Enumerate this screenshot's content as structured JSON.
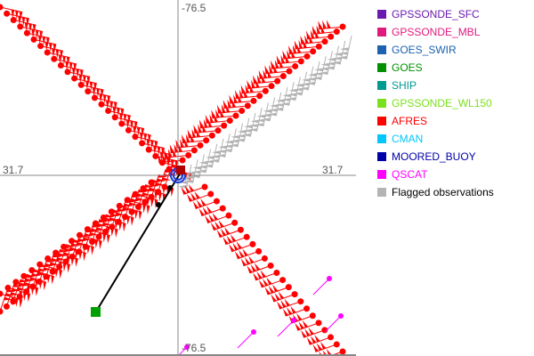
{
  "axes": {
    "top_lon": "-76.5",
    "bottom_lon": "-76.5",
    "left_lat": "31.7",
    "right_lat": "31.7"
  },
  "legend": [
    {
      "label": "GPSSONDE_SFC",
      "color": "#6a1ab0"
    },
    {
      "label": "GPSSONDE_MBL",
      "color": "#e0197d"
    },
    {
      "label": "GOES_SWIR",
      "color": "#1c62b0"
    },
    {
      "label": "GOES",
      "color": "#009000"
    },
    {
      "label": "SHIP",
      "color": "#009a90"
    },
    {
      "label": "GPSSONDE_WL150",
      "color": "#7be01c"
    },
    {
      "label": "AFRES",
      "color": "#ff0000"
    },
    {
      "label": "CMAN",
      "color": "#00c8ff"
    },
    {
      "label": "MOORED_BUOY",
      "color": "#0000a8"
    },
    {
      "label": "QSCAT",
      "color": "#ff00ff"
    },
    {
      "label": "Flagged observations",
      "color": "#b4b4b4",
      "text_color": "#000000"
    }
  ]
}
